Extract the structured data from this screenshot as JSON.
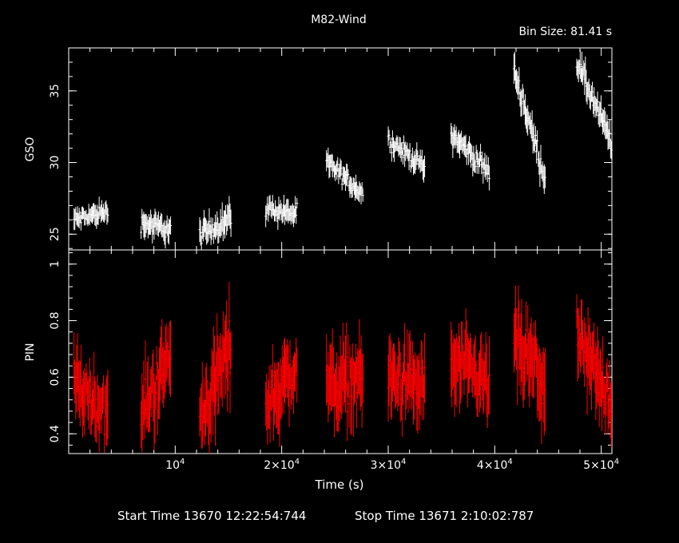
{
  "title": "M82-Wind",
  "bin_size": "Bin Size:  81.41 s",
  "footer": {
    "start": "Start Time 13670 12:22:54:744",
    "stop": "Stop Time 13671  2:10:02:787"
  },
  "colors": {
    "background": "#000000",
    "gso": "#ffffff",
    "pin": "#ff0000",
    "axes": "#ffffff"
  },
  "chart_data": {
    "type": "scatter",
    "x_axis": {
      "label": "Time (s)",
      "range": [
        0,
        51000
      ],
      "ticks": [
        {
          "value": 10000,
          "mantissa": "",
          "exponent": "4"
        },
        {
          "value": 20000,
          "mantissa": "2",
          "exponent": "4"
        },
        {
          "value": 30000,
          "mantissa": "3",
          "exponent": "4"
        },
        {
          "value": 40000,
          "mantissa": "4",
          "exponent": "4"
        },
        {
          "value": 50000,
          "mantissa": "5",
          "exponent": "4"
        }
      ]
    },
    "panels": [
      {
        "name": "GSO",
        "ylabel": "GSO",
        "color": "#ffffff",
        "ylim": [
          23.9,
          38.0
        ],
        "yticks": [
          25,
          30,
          35
        ],
        "segments": [
          {
            "t0": 500,
            "t1": 3700,
            "y0": 26.0,
            "y1": 26.6,
            "err": 0.55
          },
          {
            "t0": 6800,
            "t1": 9600,
            "y0": 25.8,
            "y1": 25.3,
            "err": 0.65
          },
          {
            "t0": 12300,
            "t1": 15300,
            "y0": 24.9,
            "y1": 26.2,
            "err": 0.75
          },
          {
            "t0": 18500,
            "t1": 21500,
            "y0": 26.8,
            "y1": 26.4,
            "err": 0.6
          },
          {
            "t0": 24200,
            "t1": 27700,
            "y0": 30.0,
            "y1": 27.8,
            "err": 0.6
          },
          {
            "t0": 30000,
            "t1": 33500,
            "y0": 31.6,
            "y1": 29.6,
            "err": 0.6
          },
          {
            "t0": 35900,
            "t1": 39500,
            "y0": 32.0,
            "y1": 29.3,
            "err": 0.65
          },
          {
            "t0": 41800,
            "t1": 44800,
            "y0": 36.5,
            "y1": 28.7,
            "err": 0.8
          },
          {
            "t0": 47700,
            "t1": 51000,
            "y0": 37.0,
            "y1": 31.3,
            "err": 0.8
          }
        ]
      },
      {
        "name": "PIN",
        "ylabel": "PIN",
        "color": "#ff0000",
        "ylim": [
          0.33,
          1.05
        ],
        "yticks": [
          0.4,
          0.6,
          0.8,
          1
        ],
        "segments": [
          {
            "t0": 500,
            "t1": 3700,
            "y0": 0.58,
            "y1": 0.47,
            "err": 0.09
          },
          {
            "t0": 6800,
            "t1": 9600,
            "y0": 0.47,
            "y1": 0.68,
            "err": 0.1
          },
          {
            "t0": 12300,
            "t1": 15300,
            "y0": 0.45,
            "y1": 0.72,
            "err": 0.11
          },
          {
            "t0": 18500,
            "t1": 21500,
            "y0": 0.5,
            "y1": 0.64,
            "err": 0.1
          },
          {
            "t0": 24200,
            "t1": 27700,
            "y0": 0.57,
            "y1": 0.6,
            "err": 0.1
          },
          {
            "t0": 30000,
            "t1": 33500,
            "y0": 0.6,
            "y1": 0.56,
            "err": 0.1
          },
          {
            "t0": 35900,
            "t1": 39500,
            "y0": 0.65,
            "y1": 0.57,
            "err": 0.1
          },
          {
            "t0": 41800,
            "t1": 44800,
            "y0": 0.72,
            "y1": 0.58,
            "err": 0.11
          },
          {
            "t0": 47700,
            "t1": 51000,
            "y0": 0.72,
            "y1": 0.52,
            "err": 0.1
          }
        ]
      }
    ]
  }
}
